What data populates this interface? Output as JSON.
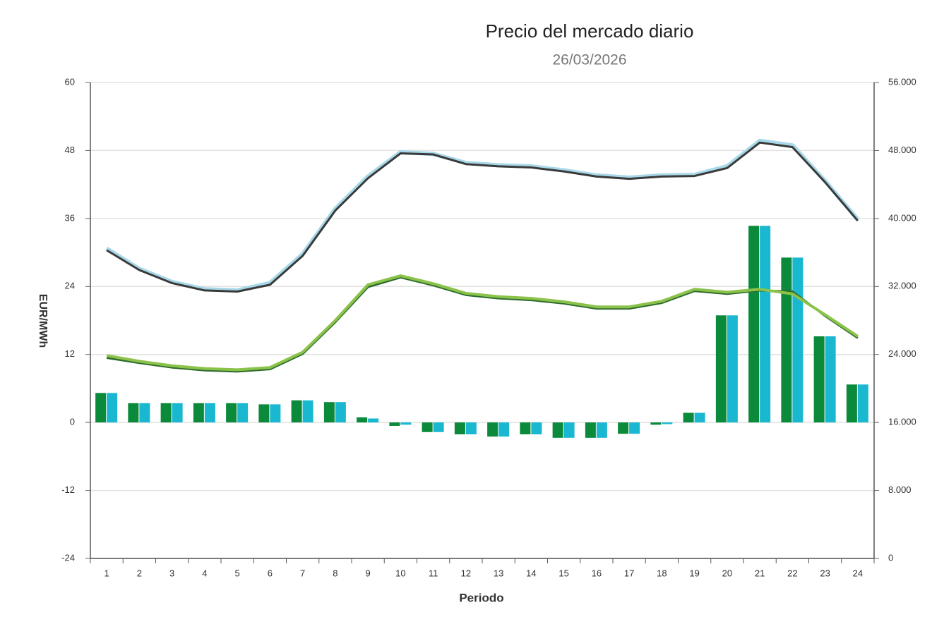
{
  "chart_data": {
    "type": "bar",
    "title": "Precio del mercado diario",
    "subtitle": "26/03/2026",
    "x_label": "Periodo",
    "y_label": "EUR/MWh",
    "categories": [
      "1",
      "2",
      "3",
      "4",
      "5",
      "6",
      "7",
      "8",
      "9",
      "10",
      "11",
      "12",
      "13",
      "14",
      "15",
      "16",
      "17",
      "18",
      "19",
      "20",
      "21",
      "22",
      "23",
      "24"
    ],
    "ylim": [
      -24,
      60
    ],
    "yticks": [
      -24,
      -12,
      0,
      12,
      24,
      36,
      48,
      60
    ],
    "y2lim": [
      0,
      56000
    ],
    "y2ticks": [
      0,
      {
        "value": 8000,
        "label": "8.000"
      },
      {
        "value": 16000,
        "label": "16.000"
      },
      {
        "value": 24000,
        "label": "24.000"
      },
      {
        "value": 32000,
        "label": "32.000"
      },
      {
        "value": 40000,
        "label": "40.000"
      },
      {
        "value": 48000,
        "label": "48.000"
      },
      {
        "value": 56000,
        "label": "56.000"
      }
    ],
    "grid": true,
    "series": [
      {
        "type": "bar",
        "color": "#0a8a3a",
        "values": [
          5.2,
          3.4,
          3.4,
          3.4,
          3.4,
          3.2,
          3.9,
          3.6,
          0.9,
          -0.6,
          -1.7,
          -2.1,
          -2.5,
          -2.1,
          -2.7,
          -2.7,
          -2.0,
          -0.4,
          1.7,
          18.9,
          34.7,
          29.1,
          15.2,
          6.7
        ]
      },
      {
        "type": "bar",
        "color": "#1ab8d0",
        "values": [
          5.2,
          3.4,
          3.4,
          3.4,
          3.4,
          3.2,
          3.9,
          3.6,
          0.7,
          -0.4,
          -1.7,
          -2.1,
          -2.5,
          -2.1,
          -2.7,
          -2.7,
          -2.0,
          -0.3,
          1.7,
          18.9,
          34.7,
          29.1,
          15.2,
          6.7
        ]
      },
      {
        "type": "line",
        "color": "#a8d8e8",
        "width": 6,
        "values": [
          30.7,
          27.1,
          24.8,
          23.5,
          23.3,
          24.6,
          29.7,
          37.7,
          43.4,
          47.7,
          47.4,
          45.8,
          45.4,
          45.2,
          44.5,
          43.6,
          43.2,
          43.6,
          43.7,
          45.2,
          49.7,
          48.9,
          42.6,
          35.8
        ]
      },
      {
        "type": "line",
        "color": "#3a3a3a",
        "width": 3,
        "values": [
          30.4,
          26.9,
          24.6,
          23.3,
          23.1,
          24.3,
          29.4,
          37.4,
          43.1,
          47.5,
          47.3,
          45.6,
          45.2,
          45.0,
          44.3,
          43.4,
          43.0,
          43.4,
          43.5,
          44.9,
          49.4,
          48.6,
          42.4,
          35.6
        ]
      },
      {
        "type": "line",
        "color": "#2e6b2e",
        "width": 3,
        "values": [
          11.4,
          10.5,
          9.7,
          9.2,
          9.0,
          9.4,
          12.1,
          17.7,
          23.9,
          25.6,
          24.2,
          22.5,
          21.9,
          21.6,
          21.0,
          20.1,
          20.1,
          21.1,
          23.2,
          22.7,
          23.3,
          23.1,
          18.8,
          14.9
        ]
      },
      {
        "type": "line",
        "color": "#8bc34a",
        "width": 4,
        "values": [
          11.8,
          10.8,
          10.0,
          9.5,
          9.3,
          9.7,
          12.4,
          18.0,
          24.3,
          25.9,
          24.5,
          22.8,
          22.2,
          21.9,
          21.3,
          20.4,
          20.4,
          21.4,
          23.5,
          23.0,
          23.5,
          22.7,
          19.0,
          15.2
        ]
      }
    ]
  }
}
